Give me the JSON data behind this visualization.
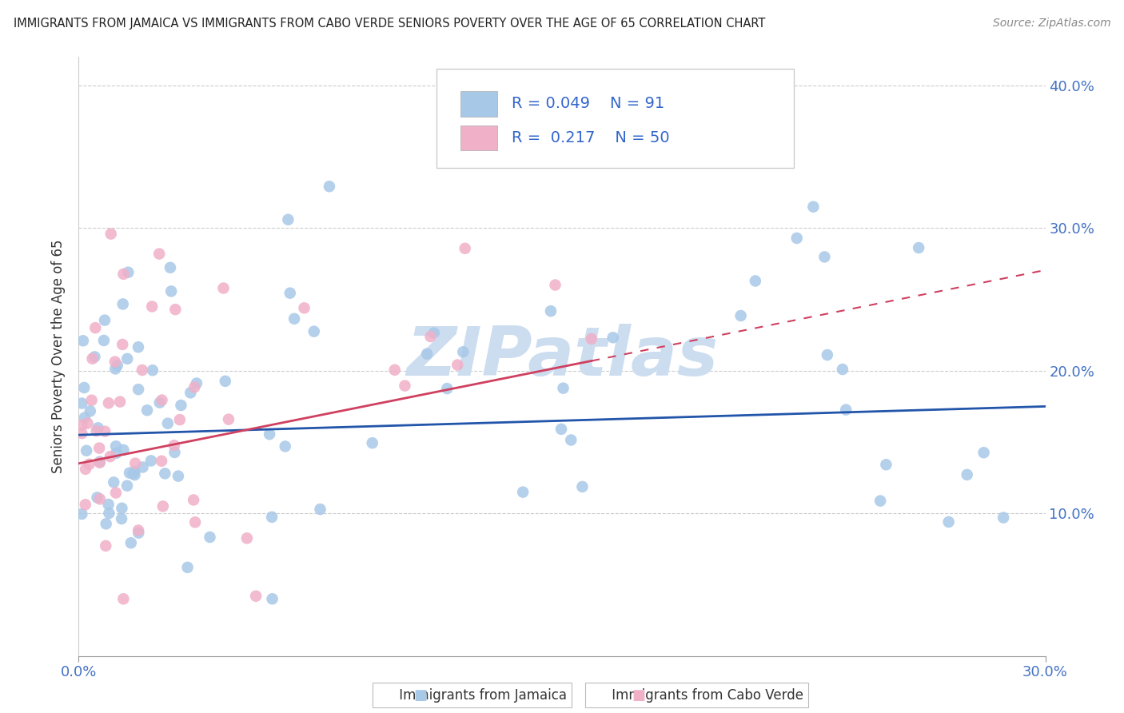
{
  "title": "IMMIGRANTS FROM JAMAICA VS IMMIGRANTS FROM CABO VERDE SENIORS POVERTY OVER THE AGE OF 65 CORRELATION CHART",
  "source": "Source: ZipAtlas.com",
  "ylabel": "Seniors Poverty Over the Age of 65",
  "R_jamaica": 0.049,
  "N_jamaica": 91,
  "R_caboverde": 0.217,
  "N_caboverde": 50,
  "jamaica_color": "#a8c8e8",
  "caboverde_color": "#f0b0c8",
  "jamaica_line_color": "#2255aa",
  "caboverde_line_color": "#d04060",
  "watermark_color": "#ccddf0",
  "background_color": "#ffffff",
  "xlim": [
    0.0,
    0.3
  ],
  "ylim": [
    0.0,
    0.42
  ],
  "yticks": [
    0.1,
    0.2,
    0.3,
    0.4
  ],
  "ytick_labels": [
    "10.0%",
    "20.0%",
    "30.0%",
    "40.0%"
  ],
  "xtick_left": "0.0%",
  "xtick_right": "30.0%",
  "legend_label_jamaica": "Immigrants from Jamaica",
  "legend_label_caboverde": "Immigrants from Cabo Verde"
}
